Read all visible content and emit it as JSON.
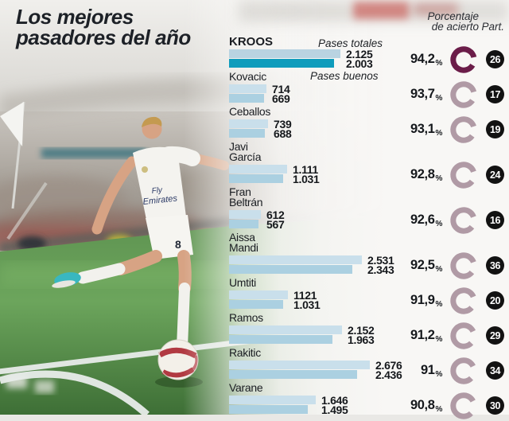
{
  "title": "Los mejores\npasadores del año",
  "header": {
    "pct_line1": "Porcentaje",
    "pct_line2": "de acierto",
    "part": "Part."
  },
  "legend": {
    "total": "Pases totales",
    "buenos": "Pases buenos"
  },
  "pct_symbol": "%",
  "photo": {
    "jersey_line1": "Fly",
    "jersey_line2": "Emirates",
    "shorts_number": "8"
  },
  "colors": {
    "bar_total": "#c9dfeb",
    "bar_buenos": "#abd0e1",
    "bar_total_highlight": "#b9d3e1",
    "bar_buenos_highlight": "#0f9cbc",
    "donut": "#b09aa5",
    "donut_highlight": "#6b1d49",
    "badge_bg": "#121212",
    "title_color": "#1d2127"
  },
  "chart_data": {
    "type": "bar",
    "orientation": "horizontal",
    "title": "Los mejores pasadores del año",
    "series_labels": [
      "Pases totales",
      "Pases buenos"
    ],
    "value_note": "labels use Spanish thousands separator",
    "players": [
      {
        "name": "KROOS",
        "name_lines": [
          "KROOS"
        ],
        "total": 2125,
        "total_label": "2.125",
        "buenos": 2003,
        "buenos_label": "2.003",
        "accuracy_pct": 94.2,
        "accuracy_label": "94,2",
        "participation": "26",
        "highlight": true
      },
      {
        "name": "Kovacic",
        "name_lines": [
          "Kovacic"
        ],
        "total": 714,
        "total_label": "714",
        "buenos": 669,
        "buenos_label": "669",
        "accuracy_pct": 93.7,
        "accuracy_label": "93,7",
        "participation": "17",
        "highlight": false
      },
      {
        "name": "Ceballos",
        "name_lines": [
          "Ceballos"
        ],
        "total": 739,
        "total_label": "739",
        "buenos": 688,
        "buenos_label": "688",
        "accuracy_pct": 93.1,
        "accuracy_label": "93,1",
        "participation": "19",
        "highlight": false
      },
      {
        "name": "Javi García",
        "name_lines": [
          "Javi",
          "García"
        ],
        "total": 1111,
        "total_label": "1.111",
        "buenos": 1031,
        "buenos_label": "1.031",
        "accuracy_pct": 92.8,
        "accuracy_label": "92,8",
        "participation": "24",
        "highlight": false
      },
      {
        "name": "Fran Beltrán",
        "name_lines": [
          "Fran",
          "Beltrán"
        ],
        "total": 612,
        "total_label": "612",
        "buenos": 567,
        "buenos_label": "567",
        "accuracy_pct": 92.6,
        "accuracy_label": "92,6",
        "participation": "16",
        "highlight": false
      },
      {
        "name": "Aissa Mandi",
        "name_lines": [
          "Aissa",
          "Mandi"
        ],
        "total": 2531,
        "total_label": "2.531",
        "buenos": 2343,
        "buenos_label": "2.343",
        "accuracy_pct": 92.5,
        "accuracy_label": "92,5",
        "participation": "36",
        "highlight": false
      },
      {
        "name": "Umtiti",
        "name_lines": [
          "Umtiti"
        ],
        "total": 1121,
        "total_label": "1121",
        "buenos": 1031,
        "buenos_label": "1.031",
        "accuracy_pct": 91.9,
        "accuracy_label": "91,9",
        "participation": "20",
        "highlight": false
      },
      {
        "name": "Ramos",
        "name_lines": [
          "Ramos"
        ],
        "total": 2152,
        "total_label": "2.152",
        "buenos": 1963,
        "buenos_label": "1.963",
        "accuracy_pct": 91.2,
        "accuracy_label": "91,2",
        "participation": "29",
        "highlight": false
      },
      {
        "name": "Rakitic",
        "name_lines": [
          "Rakitic"
        ],
        "total": 2676,
        "total_label": "2.676",
        "buenos": 2436,
        "buenos_label": "2.436",
        "accuracy_pct": 91.0,
        "accuracy_label": "91",
        "participation": "34",
        "highlight": false
      },
      {
        "name": "Varane",
        "name_lines": [
          "Varane"
        ],
        "total": 1646,
        "total_label": "1.646",
        "buenos": 1495,
        "buenos_label": "1.495",
        "accuracy_pct": 90.8,
        "accuracy_label": "90,8",
        "participation": "30",
        "highlight": false
      }
    ]
  }
}
